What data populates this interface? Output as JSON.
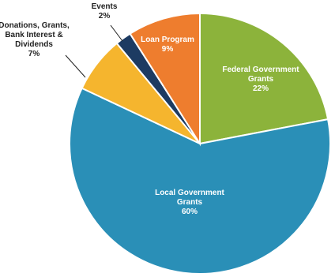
{
  "chart_data": {
    "type": "pie",
    "title": "",
    "slices": [
      {
        "label": "Federal Government Grants",
        "lines": [
          "Federal Government",
          "Grants"
        ],
        "pct_label": "22%",
        "value": 22,
        "color": "#8cb33b",
        "placement": "inside"
      },
      {
        "label": "Local Government Grants",
        "lines": [
          "Local Government",
          "Grants"
        ],
        "pct_label": "60%",
        "value": 60,
        "color": "#2a8fb7",
        "placement": "inside"
      },
      {
        "label": "Donations, Grants, Bank Interest & Dividends",
        "lines": [
          "Donations, Grants,",
          "Bank Interest &",
          "Dividends"
        ],
        "pct_label": "7%",
        "value": 7,
        "color": "#f5b52e",
        "placement": "outside"
      },
      {
        "label": "Events",
        "lines": [
          "Events"
        ],
        "pct_label": "2%",
        "value": 2,
        "color": "#1d3b62",
        "placement": "outside"
      },
      {
        "label": "Loan Program",
        "lines": [
          "Loan Program"
        ],
        "pct_label": "9%",
        "value": 9,
        "color": "#ee7d2e",
        "placement": "inside"
      }
    ],
    "start": "top (12 o'clock)",
    "direction": "clockwise",
    "legend": "none"
  }
}
